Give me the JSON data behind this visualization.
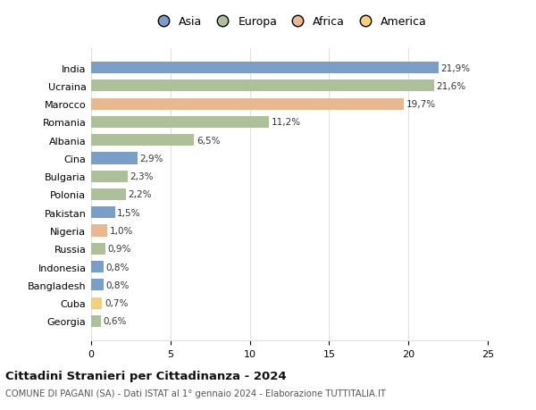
{
  "countries": [
    "India",
    "Ucraina",
    "Marocco",
    "Romania",
    "Albania",
    "Cina",
    "Bulgaria",
    "Polonia",
    "Pakistan",
    "Nigeria",
    "Russia",
    "Indonesia",
    "Bangladesh",
    "Cuba",
    "Georgia"
  ],
  "values": [
    21.9,
    21.6,
    19.7,
    11.2,
    6.5,
    2.9,
    2.3,
    2.2,
    1.5,
    1.0,
    0.9,
    0.8,
    0.8,
    0.7,
    0.6
  ],
  "labels": [
    "21,9%",
    "21,6%",
    "19,7%",
    "11,2%",
    "6,5%",
    "2,9%",
    "2,3%",
    "2,2%",
    "1,5%",
    "1,0%",
    "0,9%",
    "0,8%",
    "0,8%",
    "0,7%",
    "0,6%"
  ],
  "continents": [
    "Asia",
    "Europa",
    "Africa",
    "Europa",
    "Europa",
    "Asia",
    "Europa",
    "Europa",
    "Asia",
    "Africa",
    "Europa",
    "Asia",
    "Asia",
    "America",
    "Europa"
  ],
  "colors": {
    "Asia": "#7b9ec9",
    "Europa": "#aec09a",
    "Africa": "#e8b990",
    "America": "#f5d07a"
  },
  "legend_order": [
    "Asia",
    "Europa",
    "Africa",
    "America"
  ],
  "title": "Cittadini Stranieri per Cittadinanza - 2024",
  "subtitle": "COMUNE DI PAGANI (SA) - Dati ISTAT al 1° gennaio 2024 - Elaborazione TUTTITALIA.IT",
  "xlim": [
    0,
    25
  ],
  "xticks": [
    0,
    5,
    10,
    15,
    20,
    25
  ],
  "bg_color": "#ffffff",
  "grid_color": "#e0e0e0"
}
